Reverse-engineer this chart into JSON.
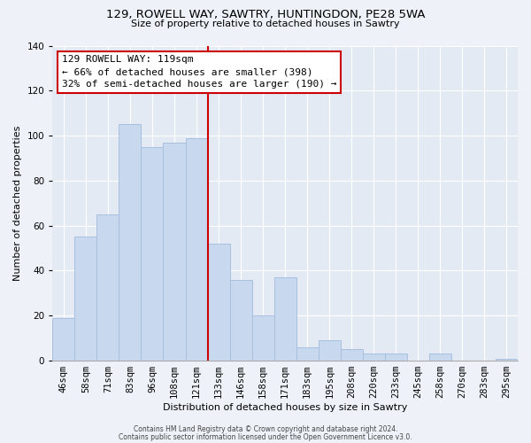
{
  "title": "129, ROWELL WAY, SAWTRY, HUNTINGDON, PE28 5WA",
  "subtitle": "Size of property relative to detached houses in Sawtry",
  "xlabel": "Distribution of detached houses by size in Sawtry",
  "ylabel": "Number of detached properties",
  "bar_labels": [
    "46sqm",
    "58sqm",
    "71sqm",
    "83sqm",
    "96sqm",
    "108sqm",
    "121sqm",
    "133sqm",
    "146sqm",
    "158sqm",
    "171sqm",
    "183sqm",
    "195sqm",
    "208sqm",
    "220sqm",
    "233sqm",
    "245sqm",
    "258sqm",
    "270sqm",
    "283sqm",
    "295sqm"
  ],
  "bar_values": [
    19,
    55,
    65,
    105,
    95,
    97,
    99,
    52,
    36,
    20,
    37,
    6,
    9,
    5,
    3,
    3,
    0,
    3,
    0,
    0,
    1
  ],
  "bar_color": "#c8d8ee",
  "bar_edge_color": "#a8c0de",
  "annotation_title": "129 ROWELL WAY: 119sqm",
  "annotation_line1": "← 66% of detached houses are smaller (398)",
  "annotation_line2": "32% of semi-detached houses are larger (190) →",
  "annotation_box_facecolor": "#ffffff",
  "annotation_box_edgecolor": "#cc0000",
  "vline_color": "#cc0000",
  "vline_x_index": 6,
  "ylim": [
    0,
    140
  ],
  "yticks": [
    0,
    20,
    40,
    60,
    80,
    100,
    120,
    140
  ],
  "footer1": "Contains HM Land Registry data © Crown copyright and database right 2024.",
  "footer2": "Contains public sector information licensed under the Open Government Licence v3.0.",
  "fig_facecolor": "#eef2f8",
  "axes_facecolor": "#e4eaf4",
  "grid_color": "#ffffff",
  "title_fontsize": 9.5,
  "subtitle_fontsize": 8,
  "axis_label_fontsize": 8,
  "tick_fontsize": 7.5,
  "annotation_fontsize": 8,
  "footer_fontsize": 5.5
}
